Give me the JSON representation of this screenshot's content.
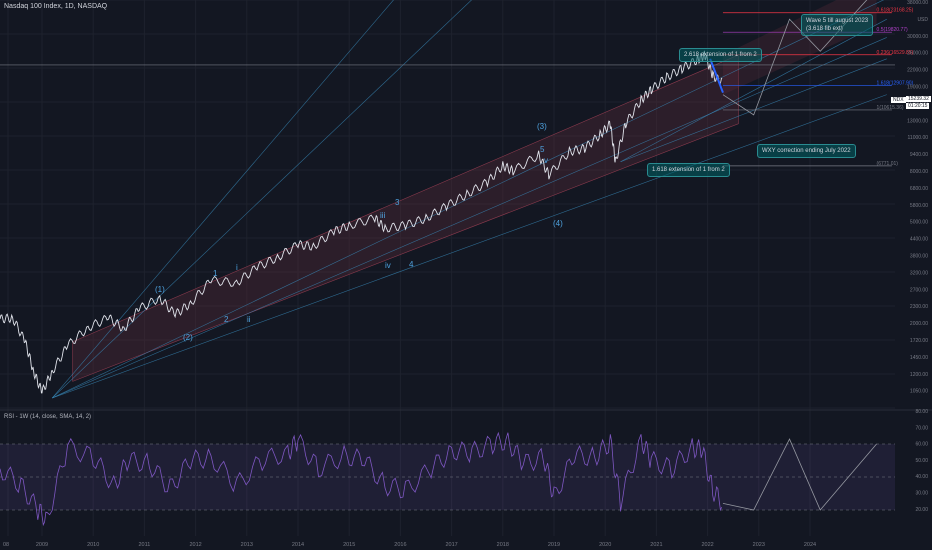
{
  "header": {
    "title": "Nasdaq 100 Index, 1D, NASDAQ",
    "currency": "USD",
    "symbol_badge": "NDX",
    "last_price": "15239.32",
    "countdown": "01:20:15"
  },
  "rsi_panel": {
    "title": "RSI - 1W (14, close, SMA, 14, 2)",
    "levels": [
      70,
      50,
      30
    ]
  },
  "annotations": {
    "ext_2618": "2.618 extension of 1 from 2",
    "ext_1618": "1.618 extension of 1 from 2",
    "wxy": "WXY correction ending July 2022",
    "wave5_line1": "Wave 5 till august 2023",
    "wave5_line2": "(3.618 fib ext)"
  },
  "colors": {
    "background": "#131722",
    "price": "#e0e3eb",
    "rsi": "#7e57c2",
    "channel_fill": "#5d2a3a",
    "fib_red": "#f23645",
    "fib_blue": "#2962ff",
    "wave_label": "#4fa3e0",
    "annotation": "#006064"
  },
  "chart_data": [
    {
      "type": "line",
      "title": "Nasdaq 100 Index, 1D, NASDAQ",
      "scale": "log",
      "ylim": [
        850,
        38000
      ],
      "x_ticks": [
        "08",
        "2009",
        "2010",
        "2011",
        "2012",
        "2013",
        "2014",
        "2015",
        "2016",
        "2017",
        "2018",
        "2019",
        "2020",
        "2021",
        "2022",
        "2023",
        "2024"
      ],
      "y_ticks": [
        "38000.00",
        "USD",
        "30000.00",
        "26000.00",
        "22000.00",
        "19000.00",
        "16000.00",
        "13000.00",
        "11000.00",
        "9400.00",
        "8000.00",
        "6800.00",
        "5800.00",
        "5000.00",
        "4400.00",
        "3800.00",
        "3200.00",
        "2700.00",
        "2300.00",
        "2000.00",
        "1720.00",
        "1450.00",
        "1200.00",
        "1050.00"
      ],
      "series": [
        {
          "x": [
            2008.0,
            2008.3,
            2008.6,
            2008.8,
            2009.0,
            2009.2,
            2009.5,
            2009.9,
            2010.3,
            2010.6,
            2010.9,
            2011.3,
            2011.6,
            2011.9,
            2012.3,
            2012.8,
            2013.2,
            2013.6,
            2014.0,
            2014.3,
            2014.7,
            2015.0,
            2015.5,
            2015.7,
            2016.1,
            2016.5,
            2016.9,
            2017.3,
            2017.7,
            2018.0,
            2018.2,
            2018.7,
            2018.9,
            2019.3,
            2019.6,
            2019.9,
            2020.1,
            2020.2,
            2020.4,
            2020.7,
            2020.9,
            2021.2,
            2021.5,
            2021.8,
            2021.95,
            2022.1,
            2022.3
          ],
          "y": [
            1980,
            2000,
            1650,
            1300,
            1100,
            1300,
            1600,
            1850,
            2000,
            1830,
            2150,
            2350,
            2050,
            2250,
            2700,
            2650,
            3000,
            3250,
            3600,
            3550,
            4000,
            4200,
            4450,
            4100,
            4200,
            4450,
            4900,
            5400,
            5950,
            6800,
            6500,
            7400,
            6300,
            7600,
            7800,
            8700,
            9500,
            7000,
            9500,
            11500,
            12500,
            13800,
            14800,
            15900,
            16500,
            14000,
            13200
          ]
        }
      ],
      "annotations": [
        "(1)",
        "(2)",
        "(3)",
        "(4)",
        "1",
        "2",
        "3",
        "4",
        "5",
        "i",
        "ii",
        "iii",
        "iv",
        "v"
      ],
      "fib_levels": [
        "0.618(23168.25)",
        "0.5(19820.77)",
        "0.236(16529.85)",
        "1.618(12907.90)",
        "1(10615.36)",
        "(6771.01)"
      ]
    },
    {
      "type": "line",
      "title": "RSI - 1W (14, close, SMA, 14, 2)",
      "ylim": [
        20,
        80
      ],
      "y_ticks": [
        "80.00",
        "70.00",
        "60.00",
        "50.00",
        "40.00",
        "30.00",
        "20.00"
      ],
      "series": [
        {
          "x": [
            2008.0,
            2008.5,
            2008.9,
            2009.1,
            2009.5,
            2010.0,
            2010.4,
            2010.7,
            2011.1,
            2011.5,
            2011.9,
            2012.3,
            2012.8,
            2013.3,
            2013.8,
            2014.0,
            2014.4,
            2014.9,
            2015.3,
            2015.7,
            2016.1,
            2016.6,
            2017.0,
            2017.4,
            2017.8,
            2018.1,
            2018.4,
            2018.8,
            2019.0,
            2019.4,
            2019.8,
            2020.1,
            2020.3,
            2020.7,
            2020.9,
            2021.3,
            2021.7,
            2021.9,
            2022.1,
            2022.3
          ],
          "y": [
            55,
            45,
            30,
            25,
            68,
            62,
            45,
            60,
            58,
            43,
            60,
            62,
            45,
            60,
            65,
            72,
            55,
            63,
            60,
            45,
            42,
            55,
            66,
            65,
            70,
            72,
            58,
            62,
            38,
            63,
            62,
            71,
            35,
            73,
            60,
            55,
            68,
            66,
            42,
            34
          ]
        }
      ]
    }
  ]
}
